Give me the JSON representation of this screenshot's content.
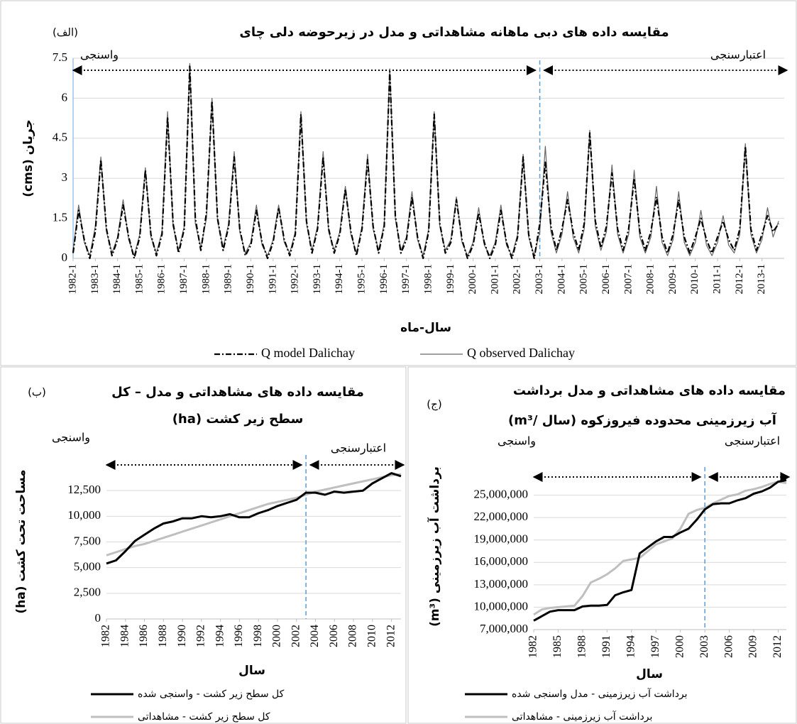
{
  "chart_data": [
    {
      "type": "line",
      "title": "مقایسه داده های دبی ماهانه مشاهداتی و مدل در زیرحوضه دلی چای",
      "panel_label": "(الف)",
      "xlabel": "سال-ماه",
      "ylabel": "جریان (cms)",
      "annotations": [
        "واسنجی",
        "اعتبارسنجی"
      ],
      "vline": 2003,
      "grid": true,
      "xlim": [
        1982,
        2014
      ],
      "ylim": [
        0,
        7.5
      ],
      "yticks": [
        0,
        1.5,
        3,
        4.5,
        6,
        7.5
      ],
      "xticks": [
        {
          "value": 1982,
          "label": "1982-1"
        },
        {
          "value": 1983,
          "label": "1983-1"
        },
        {
          "value": 1984,
          "label": "1984-1"
        },
        {
          "value": 1985,
          "label": "1985-1"
        },
        {
          "value": 1986,
          "label": "1986-1"
        },
        {
          "value": 1987,
          "label": "1987-1"
        },
        {
          "value": 1988,
          "label": "1988-1"
        },
        {
          "value": 1989,
          "label": "1989-1"
        },
        {
          "value": 1990,
          "label": "1990-1"
        },
        {
          "value": 1991,
          "label": "1991-1"
        },
        {
          "value": 1992,
          "label": "1992-1"
        },
        {
          "value": 1993,
          "label": "1993-1"
        },
        {
          "value": 1994,
          "label": "1994-1"
        },
        {
          "value": 1995,
          "label": "1995-1"
        },
        {
          "value": 1996,
          "label": "1996-1"
        },
        {
          "value": 1997,
          "label": "1997-1"
        },
        {
          "value": 1998,
          "label": "1998-1"
        },
        {
          "value": 1999,
          "label": "1999-1"
        },
        {
          "value": 2000,
          "label": "2000-1"
        },
        {
          "value": 2001,
          "label": "2001-1"
        },
        {
          "value": 2002,
          "label": "2002-1"
        },
        {
          "value": 2003,
          "label": "2003-1"
        },
        {
          "value": 2004,
          "label": "2004-1"
        },
        {
          "value": 2005,
          "label": "2005-1"
        },
        {
          "value": 2006,
          "label": "2006-1"
        },
        {
          "value": 2007,
          "label": "2007-1"
        },
        {
          "value": 2008,
          "label": "2008-1"
        },
        {
          "value": 2009,
          "label": "2009-1"
        },
        {
          "value": 2010,
          "label": "2010-1"
        },
        {
          "value": 2011,
          "label": "2011-1"
        },
        {
          "value": 2012,
          "label": "2012-1"
        },
        {
          "value": 2013,
          "label": "2013-1"
        }
      ],
      "x": [
        1982,
        1982.25,
        1982.5,
        1982.75,
        1983,
        1983.25,
        1983.5,
        1983.75,
        1984,
        1984.25,
        1984.5,
        1984.75,
        1985,
        1985.25,
        1985.5,
        1985.75,
        1986,
        1986.25,
        1986.5,
        1986.75,
        1987,
        1987.25,
        1987.5,
        1987.75,
        1988,
        1988.25,
        1988.5,
        1988.75,
        1989,
        1989.25,
        1989.5,
        1989.75,
        1990,
        1990.25,
        1990.5,
        1990.75,
        1991,
        1991.25,
        1991.5,
        1991.75,
        1992,
        1992.25,
        1992.5,
        1992.75,
        1993,
        1993.25,
        1993.5,
        1993.75,
        1994,
        1994.25,
        1994.5,
        1994.75,
        1995,
        1995.25,
        1995.5,
        1995.75,
        1996,
        1996.25,
        1996.5,
        1996.75,
        1997,
        1997.25,
        1997.5,
        1997.75,
        1998,
        1998.25,
        1998.5,
        1998.75,
        1999,
        1999.25,
        1999.5,
        1999.75,
        2000,
        2000.25,
        2000.5,
        2000.75,
        2001,
        2001.25,
        2001.5,
        2001.75,
        2002,
        2002.25,
        2002.5,
        2002.75,
        2003,
        2003.25,
        2003.5,
        2003.75,
        2004,
        2004.25,
        2004.5,
        2004.75,
        2005,
        2005.25,
        2005.5,
        2005.75,
        2006,
        2006.25,
        2006.5,
        2006.75,
        2007,
        2007.25,
        2007.5,
        2007.75,
        2008,
        2008.25,
        2008.5,
        2008.75,
        2009,
        2009.25,
        2009.5,
        2009.75,
        2010,
        2010.25,
        2010.5,
        2010.75,
        2011,
        2011.25,
        2011.5,
        2011.75,
        2012,
        2012.25,
        2012.5,
        2012.75,
        2013,
        2013.25,
        2013.5,
        2013.75
      ],
      "series": [
        {
          "name": "Q model Dalichay",
          "color": "#000000",
          "dash": "8 3 2 3",
          "width": 2.2,
          "values": [
            0.2,
            1.8,
            0.7,
            0.0,
            1.0,
            3.7,
            1.1,
            0.1,
            0.7,
            2.0,
            0.8,
            0.0,
            0.8,
            3.3,
            0.9,
            0.1,
            0.9,
            5.3,
            1.3,
            0.2,
            1.1,
            7.2,
            1.5,
            0.3,
            1.7,
            5.9,
            1.5,
            0.3,
            1.2,
            3.8,
            1.1,
            0.1,
            0.5,
            1.8,
            0.6,
            0.0,
            0.6,
            1.9,
            0.7,
            0.1,
            0.9,
            5.4,
            1.4,
            0.2,
            1.1,
            3.8,
            1.1,
            0.2,
            0.9,
            2.6,
            1.0,
            0.1,
            1.1,
            3.7,
            1.2,
            0.2,
            1.2,
            7.0,
            1.6,
            0.2,
            0.7,
            2.3,
            0.8,
            0.0,
            1.0,
            5.4,
            1.3,
            0.2,
            0.6,
            2.2,
            0.7,
            0.0,
            0.5,
            1.7,
            0.6,
            0.0,
            0.5,
            1.8,
            0.6,
            0.0,
            0.8,
            3.8,
            0.9,
            0.0,
            1.3,
            3.6,
            1.2,
            0.3,
            1.1,
            2.2,
            1.0,
            0.3,
            1.3,
            4.7,
            1.4,
            0.4,
            1.2,
            3.2,
            1.1,
            0.3,
            1.1,
            3.0,
            1.0,
            0.3,
            1.0,
            2.3,
            0.8,
            0.2,
            0.9,
            2.2,
            0.8,
            0.2,
            0.8,
            1.5,
            0.7,
            0.2,
            0.8,
            1.4,
            0.7,
            0.3,
            1.1,
            4.2,
            1.1,
            0.3,
            0.9,
            1.6,
            1.0,
            1.3
          ]
        },
        {
          "name": "Q observed Dalichay",
          "color": "#666666",
          "dash": "none",
          "width": 1.2,
          "values": [
            0.3,
            2.0,
            0.6,
            0.1,
            1.2,
            3.8,
            1.0,
            0.2,
            0.8,
            2.2,
            0.7,
            0.1,
            0.9,
            3.4,
            0.8,
            0.2,
            1.0,
            5.5,
            1.2,
            0.3,
            1.2,
            7.3,
            1.3,
            0.4,
            1.5,
            6.0,
            1.4,
            0.4,
            1.3,
            4.0,
            1.0,
            0.2,
            0.6,
            2.0,
            0.5,
            0.1,
            0.7,
            2.0,
            0.6,
            0.2,
            1.0,
            5.5,
            1.3,
            0.3,
            1.2,
            4.0,
            1.0,
            0.3,
            1.0,
            2.7,
            0.9,
            0.2,
            1.2,
            3.9,
            1.1,
            0.3,
            1.3,
            7.1,
            1.5,
            0.3,
            0.8,
            2.5,
            0.7,
            0.1,
            1.1,
            5.5,
            1.2,
            0.3,
            0.7,
            2.3,
            0.6,
            0.1,
            0.6,
            1.9,
            0.5,
            0.1,
            0.6,
            2.0,
            0.5,
            0.1,
            0.9,
            3.9,
            0.8,
            0.1,
            1.0,
            4.2,
            1.0,
            0.2,
            0.9,
            2.5,
            0.8,
            0.2,
            1.1,
            4.8,
            1.2,
            0.3,
            1.0,
            3.5,
            0.9,
            0.2,
            0.9,
            3.3,
            0.8,
            0.2,
            0.8,
            2.7,
            0.6,
            0.1,
            0.7,
            2.5,
            0.6,
            0.1,
            0.6,
            1.8,
            0.5,
            0.1,
            0.6,
            1.6,
            0.5,
            0.2,
            0.9,
            4.3,
            0.9,
            0.2,
            0.7,
            1.9,
            0.8,
            1.4
          ]
        }
      ]
    },
    {
      "type": "line",
      "title": [
        "مقایسه داده های مشاهداتی و مدل – کل",
        "سطح زیر کشت (ha)"
      ],
      "panel_label": "(ب)",
      "xlabel": "سال",
      "ylabel": "مساحت تحت کشت (ha)",
      "annotations": [
        "واسنجی",
        "اعتبارسنجی"
      ],
      "vline": 2003,
      "grid": true,
      "xlim": [
        1982,
        2013
      ],
      "ylim": [
        0,
        15000
      ],
      "yticks": [
        0,
        {
          "value": 2500,
          "label": "2,500"
        },
        {
          "value": 5000,
          "label": "5,000"
        },
        {
          "value": 7500,
          "label": "7,500"
        },
        {
          "value": 10000,
          "label": "10,000"
        },
        {
          "value": 12500,
          "label": "12,500"
        }
      ],
      "xticks": [
        1982,
        1984,
        1986,
        1988,
        1990,
        1992,
        1994,
        1996,
        1998,
        2000,
        2002,
        2004,
        2006,
        2008,
        2010,
        2012
      ],
      "x": [
        1982,
        1983,
        1984,
        1985,
        1986,
        1987,
        1988,
        1989,
        1990,
        1991,
        1992,
        1993,
        1994,
        1995,
        1996,
        1997,
        1998,
        1999,
        2000,
        2001,
        2002,
        2003,
        2004,
        2005,
        2006,
        2007,
        2008,
        2009,
        2010,
        2011,
        2012,
        2013
      ],
      "series": [
        {
          "name": "کل سطح زیر کشت - واسنجی شده",
          "color": "#000000",
          "dash": "none",
          "width": 3,
          "values": [
            5400,
            5700,
            6600,
            7600,
            8200,
            8800,
            9300,
            9500,
            9800,
            9800,
            10000,
            9900,
            10000,
            10200,
            9900,
            9900,
            10300,
            10600,
            11000,
            11300,
            11600,
            12300,
            12300,
            12100,
            12400,
            12300,
            12400,
            12500,
            13200,
            13700,
            14200,
            13900
          ]
        },
        {
          "name": "کل سطح زیر کشت - مشاهداتی",
          "color": "#bfbfbf",
          "dash": "none",
          "width": 3,
          "values": [
            6200,
            6500,
            6800,
            7100,
            7300,
            7600,
            7900,
            8200,
            8500,
            8800,
            9100,
            9400,
            9700,
            10000,
            10300,
            10600,
            10900,
            11200,
            11400,
            11600,
            11800,
            12100,
            12400,
            12600,
            12800,
            13000,
            13200,
            13400,
            13600,
            13800,
            14000,
            14100
          ]
        }
      ]
    },
    {
      "type": "line",
      "title": [
        "مقایسه داده های مشاهداتی و مدل برداشت",
        "آب زیرزمینی محدوده فیروزکوه (سال /m³)"
      ],
      "panel_label": "(ج)",
      "xlabel": "سال",
      "ylabel": "برداشت آب زیرزمینی (m³)",
      "annotations": [
        "واسنجی",
        "اعتبارسنجی"
      ],
      "vline": 2003,
      "grid": true,
      "xlim": [
        1982,
        2013
      ],
      "ylim": [
        7000000,
        28000000
      ],
      "yticks": [
        {
          "value": 7000000,
          "label": "7,000,000"
        },
        {
          "value": 10000000,
          "label": "10,000,000"
        },
        {
          "value": 13000000,
          "label": "13,000,000"
        },
        {
          "value": 16000000,
          "label": "16,000,000"
        },
        {
          "value": 19000000,
          "label": "19,000,000"
        },
        {
          "value": 22000000,
          "label": "22,000,000"
        },
        {
          "value": 25000000,
          "label": "25,000,000"
        }
      ],
      "xticks": [
        1982,
        1985,
        1988,
        1991,
        1994,
        1997,
        2000,
        2003,
        2006,
        2009,
        2012
      ],
      "x": [
        1982,
        1983,
        1984,
        1985,
        1986,
        1987,
        1988,
        1989,
        1990,
        1991,
        1992,
        1993,
        1994,
        1995,
        1996,
        1997,
        1998,
        1999,
        2000,
        2001,
        2002,
        2003,
        2004,
        2005,
        2006,
        2007,
        2008,
        2009,
        2010,
        2011,
        2012,
        2013
      ],
      "series": [
        {
          "name": "برداشت آب زیرزمینی - مدل واسنجی شده",
          "color": "#000000",
          "dash": "none",
          "width": 3,
          "values": [
            8200000,
            8800000,
            9400000,
            9600000,
            9600000,
            9600000,
            10100000,
            10200000,
            10200000,
            10300000,
            11600000,
            12000000,
            12300000,
            17200000,
            18000000,
            18800000,
            19400000,
            19400000,
            20000000,
            20500000,
            21700000,
            23100000,
            23800000,
            23900000,
            23900000,
            24300000,
            24600000,
            25200000,
            25500000,
            26000000,
            26800000,
            27000000
          ]
        },
        {
          "name": "برداشت آب زیرزمینی - مشاهداتی",
          "color": "#bfbfbf",
          "dash": "none",
          "width": 3,
          "values": [
            9000000,
            9700000,
            9900000,
            10000000,
            10100000,
            10200000,
            11500000,
            13300000,
            13800000,
            14400000,
            15200000,
            16200000,
            16400000,
            16600000,
            17500000,
            18400000,
            18800000,
            19200000,
            20500000,
            22500000,
            23000000,
            23300000,
            23900000,
            24400000,
            24900000,
            25100000,
            25600000,
            25800000,
            26100000,
            26500000,
            26800000,
            26600000
          ]
        }
      ]
    }
  ]
}
